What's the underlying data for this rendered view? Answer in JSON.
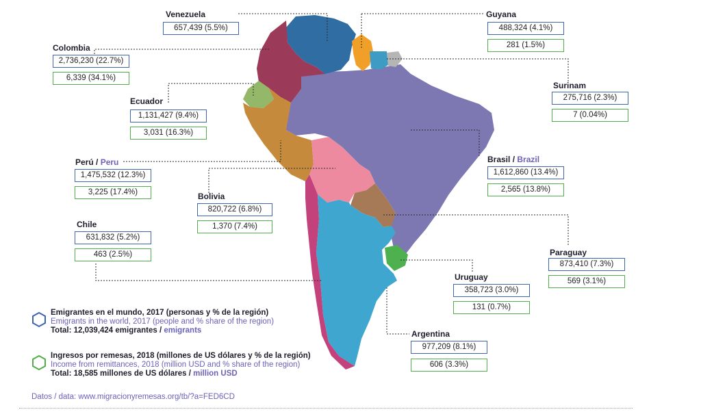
{
  "countries": {
    "venezuela": {
      "name": "Venezuela",
      "emigrants": "657,439 (5.5%)",
      "remittances": "",
      "color": "#2f6da3"
    },
    "colombia": {
      "name": "Colombia",
      "emigrants": "2,736,230 (22.7%)",
      "remittances": "6,339 (34.1%)",
      "color": "#9b3a59"
    },
    "ecuador": {
      "name": "Ecuador",
      "emigrants": "1,131,427 (9.4%)",
      "remittances": "3,031 (16.3%)",
      "color": "#93b86a"
    },
    "peru": {
      "name": "Perú",
      "name_en": "Peru",
      "emigrants": "1,475,532 (12.3%)",
      "remittances": "3,225 (17.4%)",
      "color": "#c58a3c"
    },
    "bolivia": {
      "name": "Bolivia",
      "emigrants": "820,722 (6.8%)",
      "remittances": "1,370 (7.4%)",
      "color": "#ee8aa0"
    },
    "chile": {
      "name": "Chile",
      "emigrants": "631,832 (5.2%)",
      "remittances": "463 (2.5%)",
      "color": "#c4427c"
    },
    "guyana": {
      "name": "Guyana",
      "emigrants": "488,324 (4.1%)",
      "remittances": "281 (1.5%)",
      "color": "#f0a028"
    },
    "surinam": {
      "name": "Surinam",
      "emigrants": "275,716 (2.3%)",
      "remittances": "7 (0.04%)",
      "color": "#3d9bc4"
    },
    "brasil": {
      "name": "Brasil",
      "name_en": "Brazil",
      "emigrants": "1,612,860 (13.4%)",
      "remittances": "2,565 (13.8%)",
      "color": "#7d78b2"
    },
    "paraguay": {
      "name": "Paraguay",
      "emigrants": "873,410 (7.3%)",
      "remittances": "569 (3.1%)",
      "color": "#a77a57"
    },
    "uruguay": {
      "name": "Uruguay",
      "emigrants": "358,723 (3.0%)",
      "remittances": "131 (0.7%)",
      "color": "#4fb04f"
    },
    "argentina": {
      "name": "Argentina",
      "emigrants": "977,209 (8.1%)",
      "remittances": "606 (3.3%)",
      "color": "#3ea6cf"
    },
    "french_guiana": {
      "name": "",
      "color": "#b5b5b5"
    }
  },
  "legend": {
    "emigrants": {
      "es": "Emigrantes en el mundo, 2017 (personas y % de la región)",
      "en": "Emigrants in the world, 2017 (people and % share of the region)",
      "total_es": "Total: 12,039,424 emigrantes / ",
      "total_en": "emigrants",
      "color": "#3e64b0"
    },
    "remittances": {
      "es": "Ingresos por remesas, 2018 (millones de US dólares y % de la región)",
      "en": "Income from remittances, 2018 (million USD and % share of the region)",
      "total_es": "Total: 18,585 millones de US dólares / ",
      "total_en": "million USD",
      "color": "#4fae4a"
    }
  },
  "source": "Datos / data: www.migracionyremesas.org/tb/?a=FED6CD"
}
